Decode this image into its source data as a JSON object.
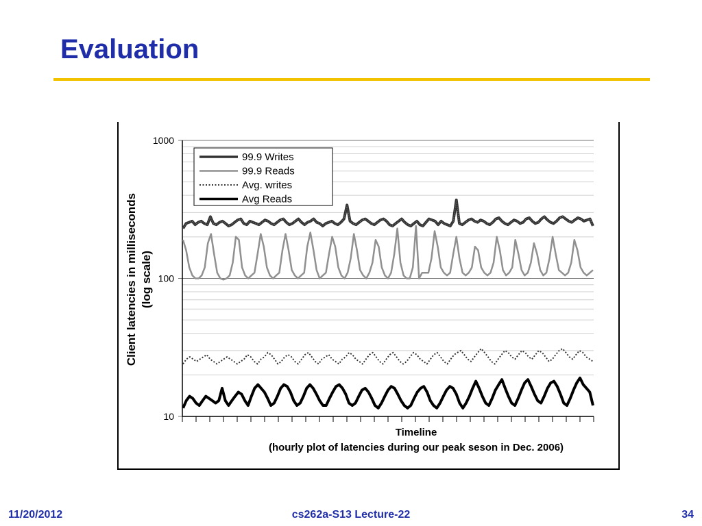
{
  "slide": {
    "title": "Evaluation",
    "footer_date": "11/20/2012",
    "footer_center": "cs262a-S13 Lecture-22",
    "page_number": "34",
    "title_color": "#1f2ea8",
    "rule_color": "#f2c100"
  },
  "chart_data": {
    "type": "line",
    "ylabel": "Client latencies in milliseconds (log scale)",
    "ylabel_lines": [
      "Client latencies in milliseconds",
      "(log scale)"
    ],
    "xlabel_lines": [
      "Timeline",
      "(hourly plot of latencies during our peak seson in Dec. 2006)"
    ],
    "y_scale": "log",
    "ylim": [
      10,
      1000
    ],
    "y_ticks": [
      {
        "value": 1000,
        "label": "1000"
      },
      {
        "value": 100,
        "label": "100"
      },
      {
        "value": 10,
        "label": "10"
      }
    ],
    "grid": true,
    "legend_position": "top-left",
    "series": [
      {
        "name": "99.9 Writes",
        "style": "thick-textured",
        "color": "#333333",
        "values": [
          230,
          250,
          255,
          260,
          245,
          255,
          260,
          250,
          245,
          280,
          250,
          245,
          255,
          260,
          250,
          240,
          245,
          255,
          265,
          270,
          250,
          245,
          260,
          255,
          250,
          245,
          255,
          265,
          260,
          250,
          245,
          255,
          265,
          270,
          255,
          245,
          250,
          260,
          270,
          255,
          245,
          255,
          260,
          270,
          255,
          250,
          240,
          250,
          255,
          260,
          250,
          245,
          255,
          270,
          340,
          260,
          250,
          245,
          255,
          265,
          270,
          260,
          250,
          245,
          255,
          265,
          270,
          260,
          245,
          240,
          250,
          260,
          270,
          255,
          245,
          240,
          250,
          260,
          245,
          240,
          255,
          270,
          265,
          260,
          245,
          260,
          250,
          245,
          240,
          260,
          370,
          250,
          245,
          255,
          265,
          270,
          260,
          255,
          265,
          260,
          250,
          245,
          255,
          270,
          275,
          260,
          250,
          245,
          255,
          265,
          260,
          250,
          255,
          270,
          275,
          260,
          250,
          255,
          270,
          280,
          265,
          255,
          250,
          260,
          275,
          280,
          270,
          260,
          255,
          265,
          275,
          270,
          260,
          265,
          270,
          240
        ]
      },
      {
        "name": "99.9 Reads",
        "style": "solid",
        "color": "#909090",
        "values": [
          190,
          160,
          120,
          105,
          100,
          100,
          105,
          120,
          180,
          210,
          150,
          110,
          100,
          98,
          100,
          105,
          130,
          200,
          190,
          120,
          105,
          100,
          105,
          110,
          150,
          210,
          170,
          120,
          105,
          100,
          105,
          110,
          160,
          210,
          160,
          115,
          105,
          100,
          105,
          110,
          170,
          215,
          160,
          115,
          100,
          105,
          110,
          150,
          200,
          170,
          120,
          105,
          100,
          110,
          140,
          210,
          160,
          115,
          105,
          100,
          110,
          130,
          190,
          170,
          120,
          105,
          100,
          110,
          150,
          230,
          130,
          105,
          100,
          100,
          120,
          240,
          100,
          110,
          110,
          110,
          140,
          220,
          170,
          120,
          110,
          105,
          110,
          150,
          200,
          140,
          110,
          105,
          110,
          120,
          170,
          160,
          120,
          110,
          105,
          110,
          130,
          200,
          160,
          115,
          105,
          110,
          120,
          190,
          150,
          115,
          105,
          110,
          130,
          180,
          150,
          115,
          105,
          110,
          140,
          200,
          150,
          115,
          110,
          105,
          110,
          130,
          190,
          160,
          120,
          110,
          105,
          110,
          115
        ]
      },
      {
        "name": "Avg. writes",
        "style": "dotted",
        "color": "#333333",
        "values": [
          24,
          26,
          27,
          26,
          25,
          26,
          27,
          28,
          26,
          25,
          24,
          25,
          26,
          27,
          26,
          25,
          24,
          25,
          26,
          28,
          27,
          25,
          24,
          26,
          27,
          29,
          28,
          26,
          24,
          25,
          27,
          28,
          27,
          25,
          24,
          26,
          28,
          29,
          27,
          25,
          24,
          26,
          27,
          28,
          26,
          25,
          24,
          26,
          27,
          29,
          28,
          26,
          25,
          24,
          26,
          28,
          29,
          27,
          25,
          24,
          26,
          28,
          29,
          27,
          25,
          24,
          25,
          27,
          29,
          28,
          26,
          25,
          24,
          26,
          28,
          29,
          27,
          25,
          24,
          26,
          28,
          29,
          30,
          28,
          26,
          25,
          27,
          29,
          31,
          29,
          27,
          25,
          24,
          26,
          28,
          30,
          29,
          27,
          26,
          28,
          30,
          29,
          27,
          26,
          28,
          30,
          29,
          27,
          25,
          26,
          28,
          30,
          31,
          29,
          27,
          26,
          28,
          30,
          29,
          27,
          26,
          25
        ]
      },
      {
        "name": "Avg Reads",
        "style": "thick",
        "color": "#000000",
        "values": [
          11.5,
          13,
          14,
          13.5,
          12.5,
          12,
          13,
          14,
          13.5,
          13,
          12.5,
          13,
          16,
          13,
          12,
          13,
          14,
          15,
          14.5,
          13,
          12,
          14,
          16,
          17,
          16,
          15,
          13.5,
          12,
          12.5,
          14,
          16,
          17,
          16.5,
          15,
          13,
          12,
          12.5,
          14,
          16,
          17,
          16,
          14.5,
          13,
          12,
          12,
          13.5,
          15,
          16.5,
          17,
          16,
          14.5,
          12.5,
          12,
          12.5,
          14,
          15.5,
          16,
          15,
          13.5,
          12,
          11.5,
          12.5,
          14,
          15.5,
          16.5,
          16,
          14.5,
          13,
          12,
          11.5,
          12,
          13.5,
          15,
          16,
          16.5,
          15,
          13,
          12,
          11.5,
          12.5,
          14,
          15.5,
          16.5,
          16,
          14.5,
          12.5,
          11.5,
          12.5,
          14,
          16,
          18,
          16,
          14,
          12.5,
          12,
          13.5,
          15.5,
          17,
          18.5,
          16,
          14,
          12.5,
          12,
          13.5,
          15.5,
          17.5,
          18.5,
          16.5,
          14.5,
          13,
          12.5,
          14,
          16,
          17.5,
          18,
          16.5,
          14.5,
          12.5,
          12,
          13.5,
          15.5,
          17.5,
          19,
          17,
          16,
          15,
          12
        ]
      }
    ]
  }
}
